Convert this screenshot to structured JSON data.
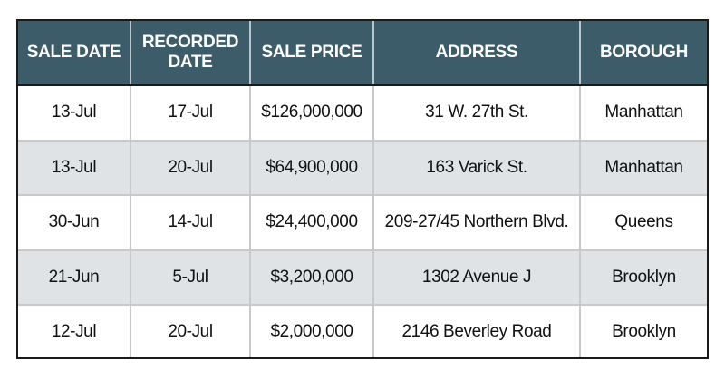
{
  "table": {
    "headers": {
      "sale_date": "SALE DATE",
      "recorded_date_line1": "RECORDED",
      "recorded_date_line2": "DATE",
      "sale_price": "SALE PRICE",
      "address": "ADDRESS",
      "borough": "BOROUGH"
    },
    "rows": [
      {
        "sale_date": "13-Jul",
        "recorded_date": "17-Jul",
        "sale_price": "$126,000,000",
        "address": "31 W. 27th St.",
        "borough": "Manhattan"
      },
      {
        "sale_date": "13-Jul",
        "recorded_date": "20-Jul",
        "sale_price": "$64,900,000",
        "address": "163 Varick St.",
        "borough": "Manhattan"
      },
      {
        "sale_date": "30-Jun",
        "recorded_date": "14-Jul",
        "sale_price": "$24,400,000",
        "address": "209-27/45 Northern Blvd.",
        "borough": "Queens"
      },
      {
        "sale_date": "21-Jun",
        "recorded_date": "5-Jul",
        "sale_price": "$3,200,000",
        "address": "1302 Avenue J",
        "borough": "Brooklyn"
      },
      {
        "sale_date": "12-Jul",
        "recorded_date": "20-Jul",
        "sale_price": "$2,000,000",
        "address": "2146 Beverley Road",
        "borough": "Brooklyn"
      }
    ]
  },
  "colors": {
    "header_bg": "#3c5c6a",
    "stripe_bg": "#dfe3e6"
  }
}
